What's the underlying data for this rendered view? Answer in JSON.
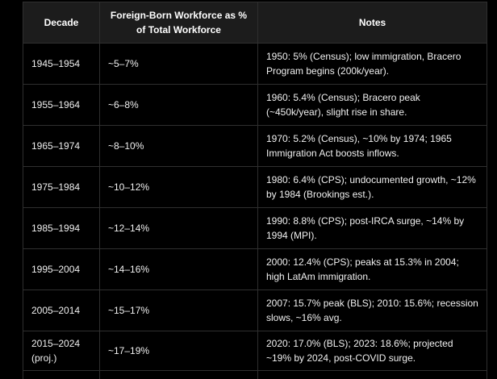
{
  "table": {
    "headers": {
      "decade": "Decade",
      "share": "Foreign-Born Workforce as % of Total Workforce",
      "notes": "Notes"
    },
    "rows": [
      {
        "decade": "1945–1954",
        "share": "~5–7%",
        "notes": "1950: 5% (Census); low immigration, Bracero Program begins (200k/year)."
      },
      {
        "decade": "1955–1964",
        "share": "~6–8%",
        "notes": "1960: 5.4% (Census); Bracero peak (~450k/year), slight rise in share."
      },
      {
        "decade": "1965–1974",
        "share": "~8–10%",
        "notes": "1970: 5.2% (Census), ~10% by 1974; 1965 Immigration Act boosts inflows."
      },
      {
        "decade": "1975–1984",
        "share": "~10–12%",
        "notes": "1980: 6.4% (CPS); undocumented growth, ~12% by 1984 (Brookings est.)."
      },
      {
        "decade": "1985–1994",
        "share": "~12–14%",
        "notes": "1990: 8.8% (CPS); post-IRCA surge, ~14% by 1994 (MPI)."
      },
      {
        "decade": "1995–2004",
        "share": "~14–16%",
        "notes": "2000: 12.4% (CPS); peaks at 15.3% in 2004; high LatAm immigration."
      },
      {
        "decade": "2005–2014",
        "share": "~15–17%",
        "notes": "2007: 15.7% peak (BLS); 2010: 15.6%; recession slows, ~16% avg."
      },
      {
        "decade": "2015–2024 (proj.)",
        "share": "~17–19%",
        "notes": "2020: 17.0% (BLS); 2023: 18.6%; projected ~19% by 2024, post-COVID surge."
      }
    ]
  }
}
